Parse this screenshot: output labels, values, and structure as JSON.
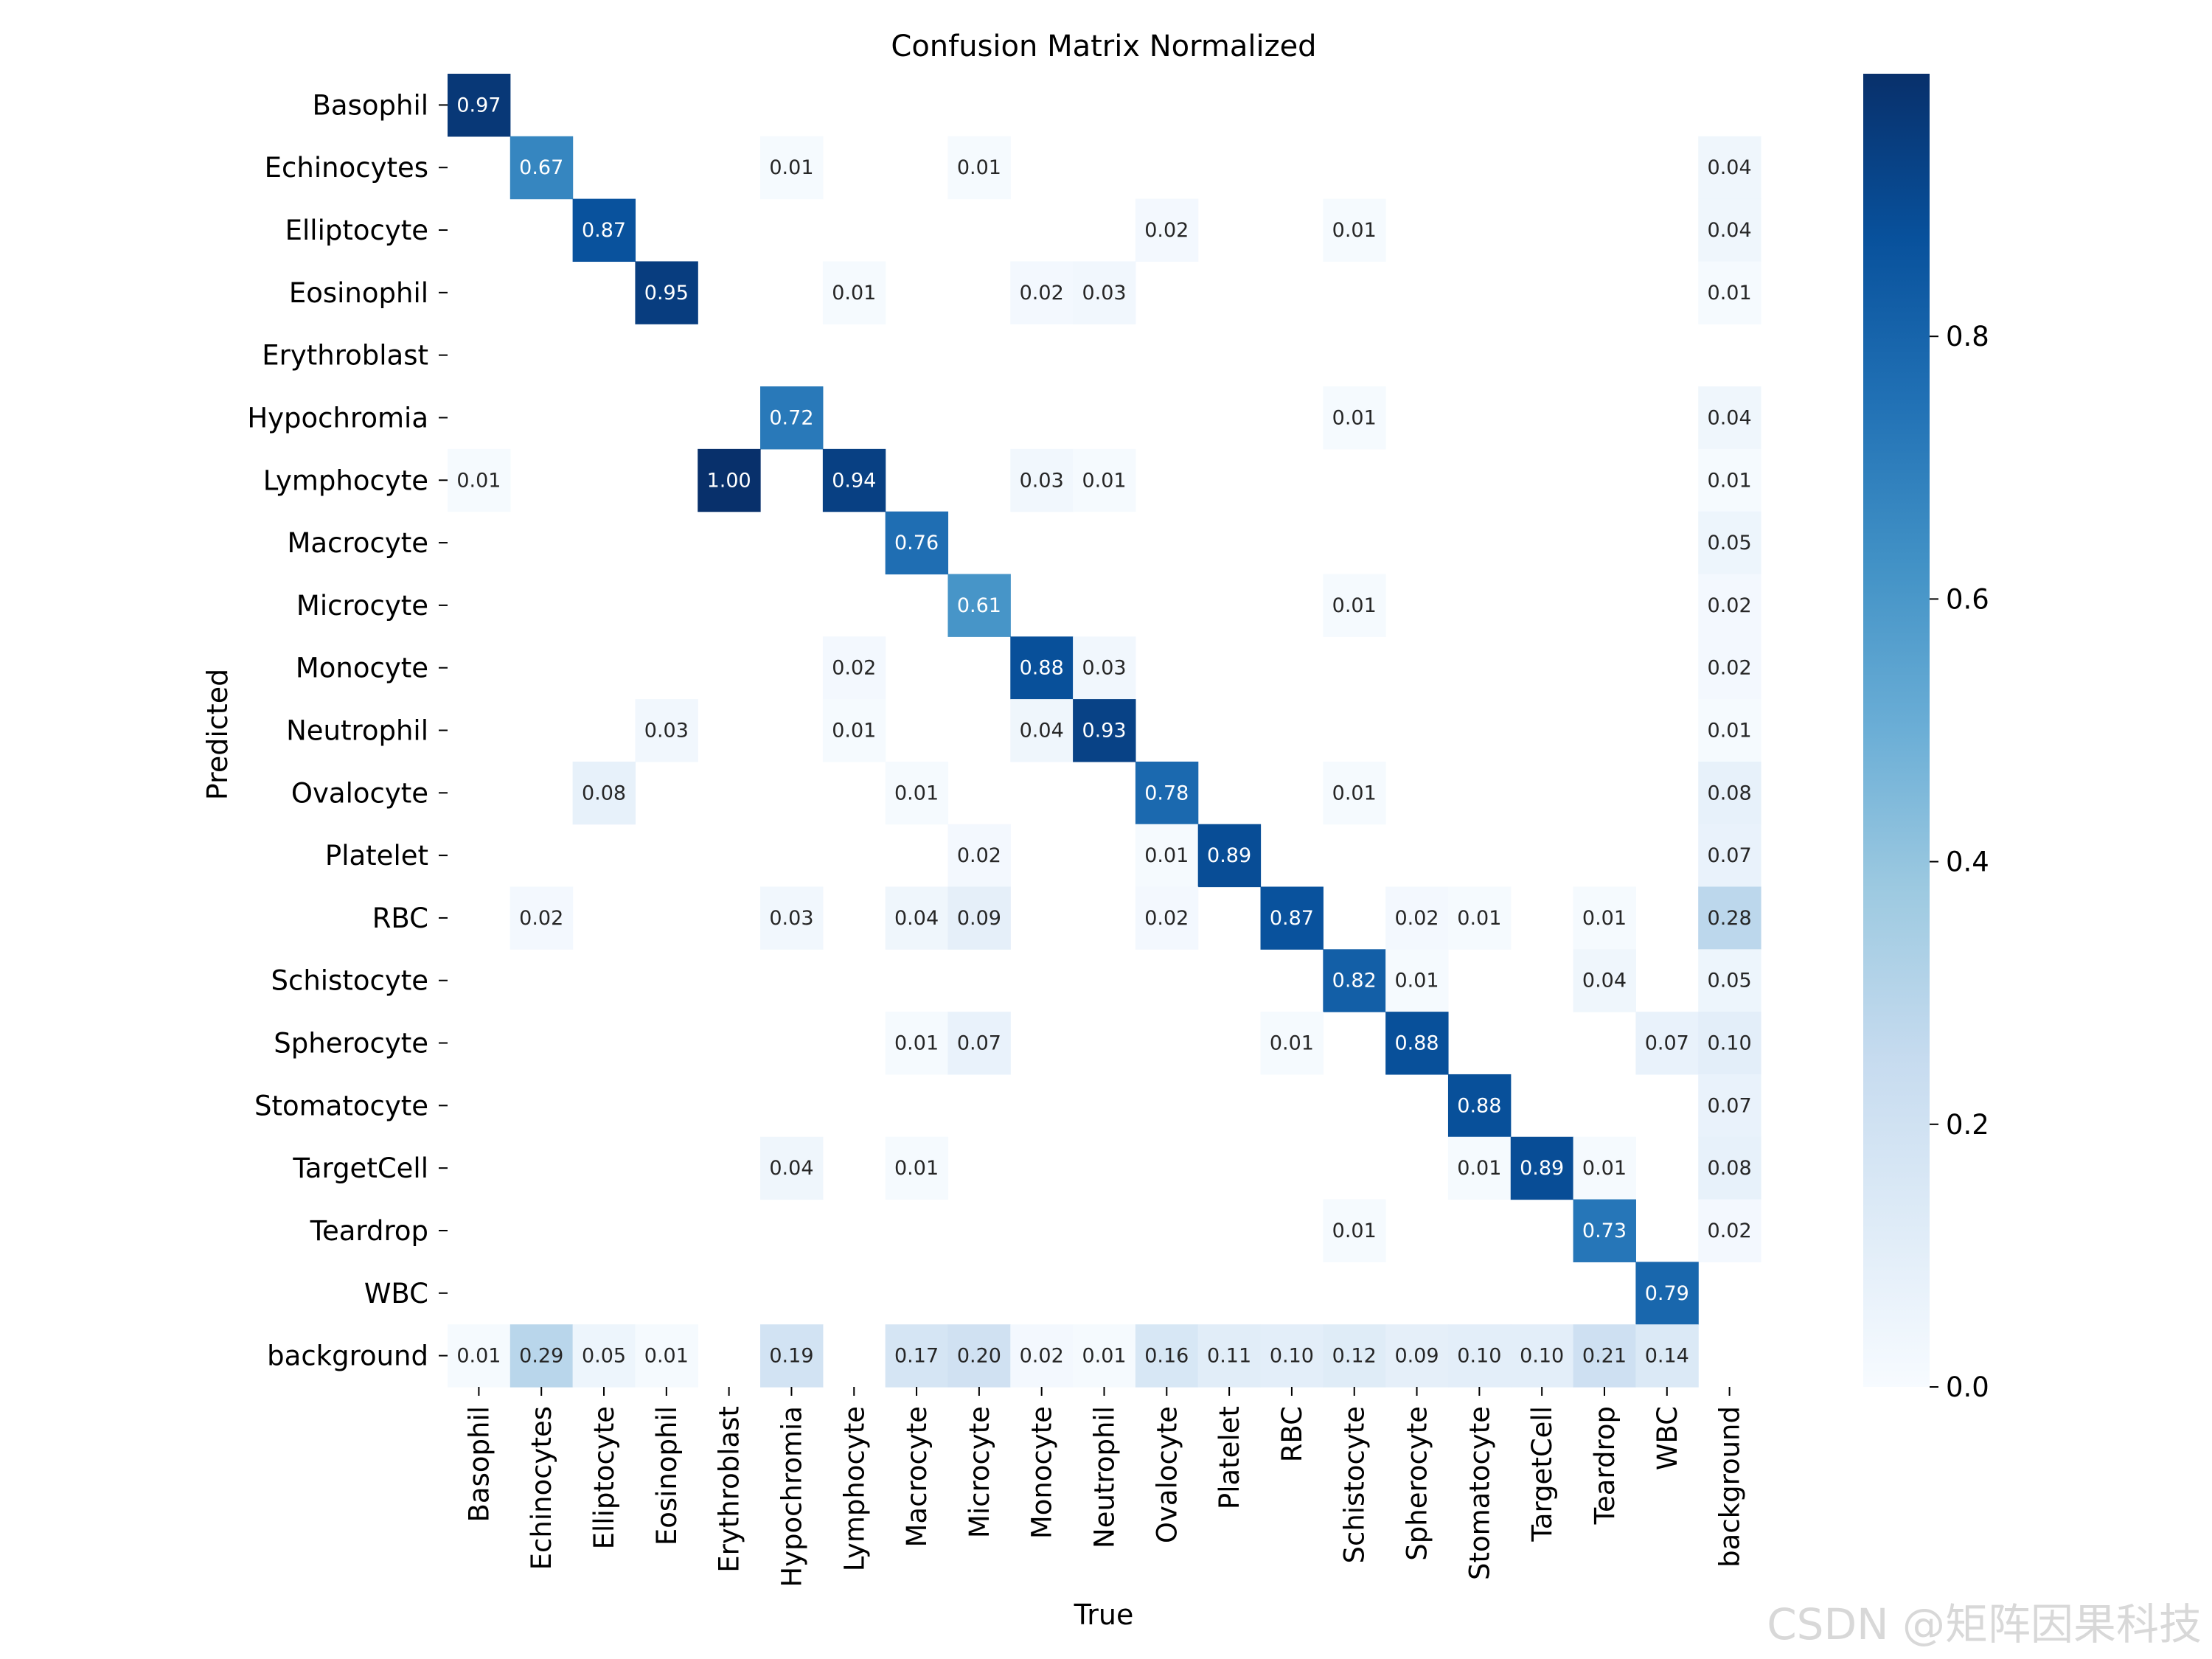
{
  "chart_data": {
    "type": "heatmap",
    "title": "Confusion Matrix Normalized",
    "xlabel": "True",
    "ylabel": "Predicted",
    "labels": [
      "Basophil",
      "Echinocytes",
      "Elliptocyte",
      "Eosinophil",
      "Erythroblast",
      "Hypochromia",
      "Lymphocyte",
      "Macrocyte",
      "Microcyte",
      "Monocyte",
      "Neutrophil",
      "Ovalocyte",
      "Platelet",
      "RBC",
      "Schistocyte",
      "Spherocyte",
      "Stomatocyte",
      "TargetCell",
      "Teardrop",
      "WBC",
      "background"
    ],
    "colormap": "Blues",
    "vmin": 0.0,
    "vmax": 1.0,
    "colorbar_ticks": [
      0.0,
      0.2,
      0.4,
      0.6,
      0.8
    ],
    "colorbar_tick_labels": [
      "0.0",
      "0.2",
      "0.4",
      "0.6",
      "0.8"
    ],
    "cell_label_threshold": 0.5,
    "values": [
      [
        0.97,
        0,
        0,
        0,
        0,
        0,
        0,
        0,
        0,
        0,
        0,
        0,
        0,
        0,
        0,
        0,
        0,
        0,
        0,
        0,
        0
      ],
      [
        0,
        0.67,
        0,
        0,
        0,
        0.01,
        0,
        0,
        0.01,
        0,
        0,
        0,
        0,
        0,
        0,
        0,
        0,
        0,
        0,
        0,
        0.04
      ],
      [
        0,
        0,
        0.87,
        0,
        0,
        0,
        0,
        0,
        0,
        0,
        0,
        0.02,
        0,
        0,
        0.01,
        0,
        0,
        0,
        0,
        0,
        0.04
      ],
      [
        0,
        0,
        0,
        0.95,
        0,
        0,
        0.01,
        0,
        0,
        0.02,
        0.03,
        0,
        0,
        0,
        0,
        0,
        0,
        0,
        0,
        0,
        0.01
      ],
      [
        0,
        0,
        0,
        0,
        0,
        0,
        0,
        0,
        0,
        0,
        0,
        0,
        0,
        0,
        0,
        0,
        0,
        0,
        0,
        0,
        0
      ],
      [
        0,
        0,
        0,
        0,
        0,
        0.72,
        0,
        0,
        0,
        0,
        0,
        0,
        0,
        0,
        0.01,
        0,
        0,
        0,
        0,
        0,
        0.04
      ],
      [
        0.01,
        0,
        0,
        0,
        1.0,
        0,
        0.94,
        0,
        0,
        0.03,
        0.01,
        0,
        0,
        0,
        0,
        0,
        0,
        0,
        0,
        0,
        0.01
      ],
      [
        0,
        0,
        0,
        0,
        0,
        0,
        0,
        0.76,
        0,
        0,
        0,
        0,
        0,
        0,
        0,
        0,
        0,
        0,
        0,
        0,
        0.05
      ],
      [
        0,
        0,
        0,
        0,
        0,
        0,
        0,
        0,
        0.61,
        0,
        0,
        0,
        0,
        0,
        0.01,
        0,
        0,
        0,
        0,
        0,
        0.02
      ],
      [
        0,
        0,
        0,
        0,
        0,
        0,
        0.02,
        0,
        0,
        0.88,
        0.03,
        0,
        0,
        0,
        0,
        0,
        0,
        0,
        0,
        0,
        0.02
      ],
      [
        0,
        0,
        0,
        0.03,
        0,
        0,
        0.01,
        0,
        0,
        0.04,
        0.93,
        0,
        0,
        0,
        0,
        0,
        0,
        0,
        0,
        0,
        0.01
      ],
      [
        0,
        0,
        0.08,
        0,
        0,
        0,
        0,
        0.01,
        0,
        0,
        0,
        0.78,
        0,
        0,
        0.01,
        0,
        0,
        0,
        0,
        0,
        0.08
      ],
      [
        0,
        0,
        0,
        0,
        0,
        0,
        0,
        0,
        0.02,
        0,
        0,
        0.01,
        0.89,
        0,
        0,
        0,
        0,
        0,
        0,
        0,
        0.07
      ],
      [
        0,
        0.02,
        0,
        0,
        0,
        0.03,
        0,
        0.04,
        0.09,
        0,
        0,
        0.02,
        0,
        0.87,
        0,
        0.02,
        0.01,
        0,
        0.01,
        0,
        0.28
      ],
      [
        0,
        0,
        0,
        0,
        0,
        0,
        0,
        0,
        0,
        0,
        0,
        0,
        0,
        0,
        0.82,
        0.01,
        0,
        0,
        0.04,
        0,
        0.05
      ],
      [
        0,
        0,
        0,
        0,
        0,
        0,
        0,
        0.01,
        0.07,
        0,
        0,
        0,
        0,
        0.01,
        0,
        0.88,
        0,
        0,
        0,
        0.07,
        0.1
      ],
      [
        0,
        0,
        0,
        0,
        0,
        0,
        0,
        0,
        0,
        0,
        0,
        0,
        0,
        0,
        0,
        0,
        0.88,
        0,
        0,
        0,
        0.07
      ],
      [
        0,
        0,
        0,
        0,
        0,
        0.04,
        0,
        0.01,
        0,
        0,
        0,
        0,
        0,
        0,
        0,
        0,
        0.01,
        0.89,
        0.01,
        0,
        0.08
      ],
      [
        0,
        0,
        0,
        0,
        0,
        0,
        0,
        0,
        0,
        0,
        0,
        0,
        0,
        0,
        0.01,
        0,
        0,
        0,
        0.73,
        0,
        0.02
      ],
      [
        0,
        0,
        0,
        0,
        0,
        0,
        0,
        0,
        0,
        0,
        0,
        0,
        0,
        0,
        0,
        0,
        0,
        0,
        0,
        0.79,
        0
      ],
      [
        0.01,
        0.29,
        0.05,
        0.01,
        0,
        0.19,
        0,
        0.17,
        0.2,
        0.02,
        0.01,
        0.16,
        0.11,
        0.1,
        0.12,
        0.09,
        0.1,
        0.1,
        0.21,
        0.14,
        0
      ]
    ]
  },
  "watermark": "CSDN @矩阵因果科技"
}
